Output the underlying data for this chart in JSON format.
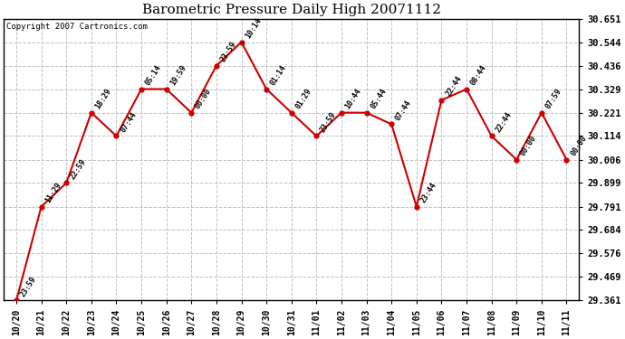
{
  "title": "Barometric Pressure Daily High 20071112",
  "copyright": "Copyright 2007 Cartronics.com",
  "bg_color": "#ffffff",
  "grid_color": "#c0c0c0",
  "line_color": "#cc0000",
  "marker_color": "#cc0000",
  "ylim": [
    29.361,
    30.651
  ],
  "ytick_values": [
    29.361,
    29.469,
    29.576,
    29.684,
    29.791,
    29.899,
    30.006,
    30.114,
    30.221,
    30.329,
    30.436,
    30.544,
    30.651
  ],
  "x_labels": [
    "10/20",
    "10/21",
    "10/22",
    "10/23",
    "10/24",
    "10/25",
    "10/26",
    "10/27",
    "10/28",
    "10/29",
    "10/30",
    "10/31",
    "11/01",
    "11/02",
    "11/03",
    "11/04",
    "11/05",
    "11/06",
    "11/07",
    "11/08",
    "11/09",
    "11/10",
    "11/11"
  ],
  "points": [
    {
      "xi": 0,
      "y": 29.361,
      "label": "23:59"
    },
    {
      "xi": 1,
      "y": 29.791,
      "label": "11:29"
    },
    {
      "xi": 2,
      "y": 29.899,
      "label": "22:59"
    },
    {
      "xi": 3,
      "y": 30.221,
      "label": "18:29"
    },
    {
      "xi": 4,
      "y": 30.114,
      "label": "07:44"
    },
    {
      "xi": 5,
      "y": 30.329,
      "label": "05:14"
    },
    {
      "xi": 6,
      "y": 30.329,
      "label": "19:59"
    },
    {
      "xi": 7,
      "y": 30.221,
      "label": "00:00"
    },
    {
      "xi": 8,
      "y": 30.436,
      "label": "23:59"
    },
    {
      "xi": 9,
      "y": 30.544,
      "label": "10:14"
    },
    {
      "xi": 10,
      "y": 30.329,
      "label": "01:14"
    },
    {
      "xi": 11,
      "y": 30.221,
      "label": "01:29"
    },
    {
      "xi": 12,
      "y": 30.114,
      "label": "23:59"
    },
    {
      "xi": 13,
      "y": 30.221,
      "label": "10:44"
    },
    {
      "xi": 14,
      "y": 30.221,
      "label": "05:44"
    },
    {
      "xi": 15,
      "y": 30.168,
      "label": "07:44"
    },
    {
      "xi": 16,
      "y": 29.791,
      "label": "23:44"
    },
    {
      "xi": 17,
      "y": 30.278,
      "label": "22:44"
    },
    {
      "xi": 18,
      "y": 30.329,
      "label": "08:44"
    },
    {
      "xi": 19,
      "y": 30.114,
      "label": "22:44"
    },
    {
      "xi": 20,
      "y": 30.006,
      "label": "00:00"
    },
    {
      "xi": 21,
      "y": 30.221,
      "label": "07:59"
    },
    {
      "xi": 22,
      "y": 30.006,
      "label": "00:00"
    }
  ]
}
